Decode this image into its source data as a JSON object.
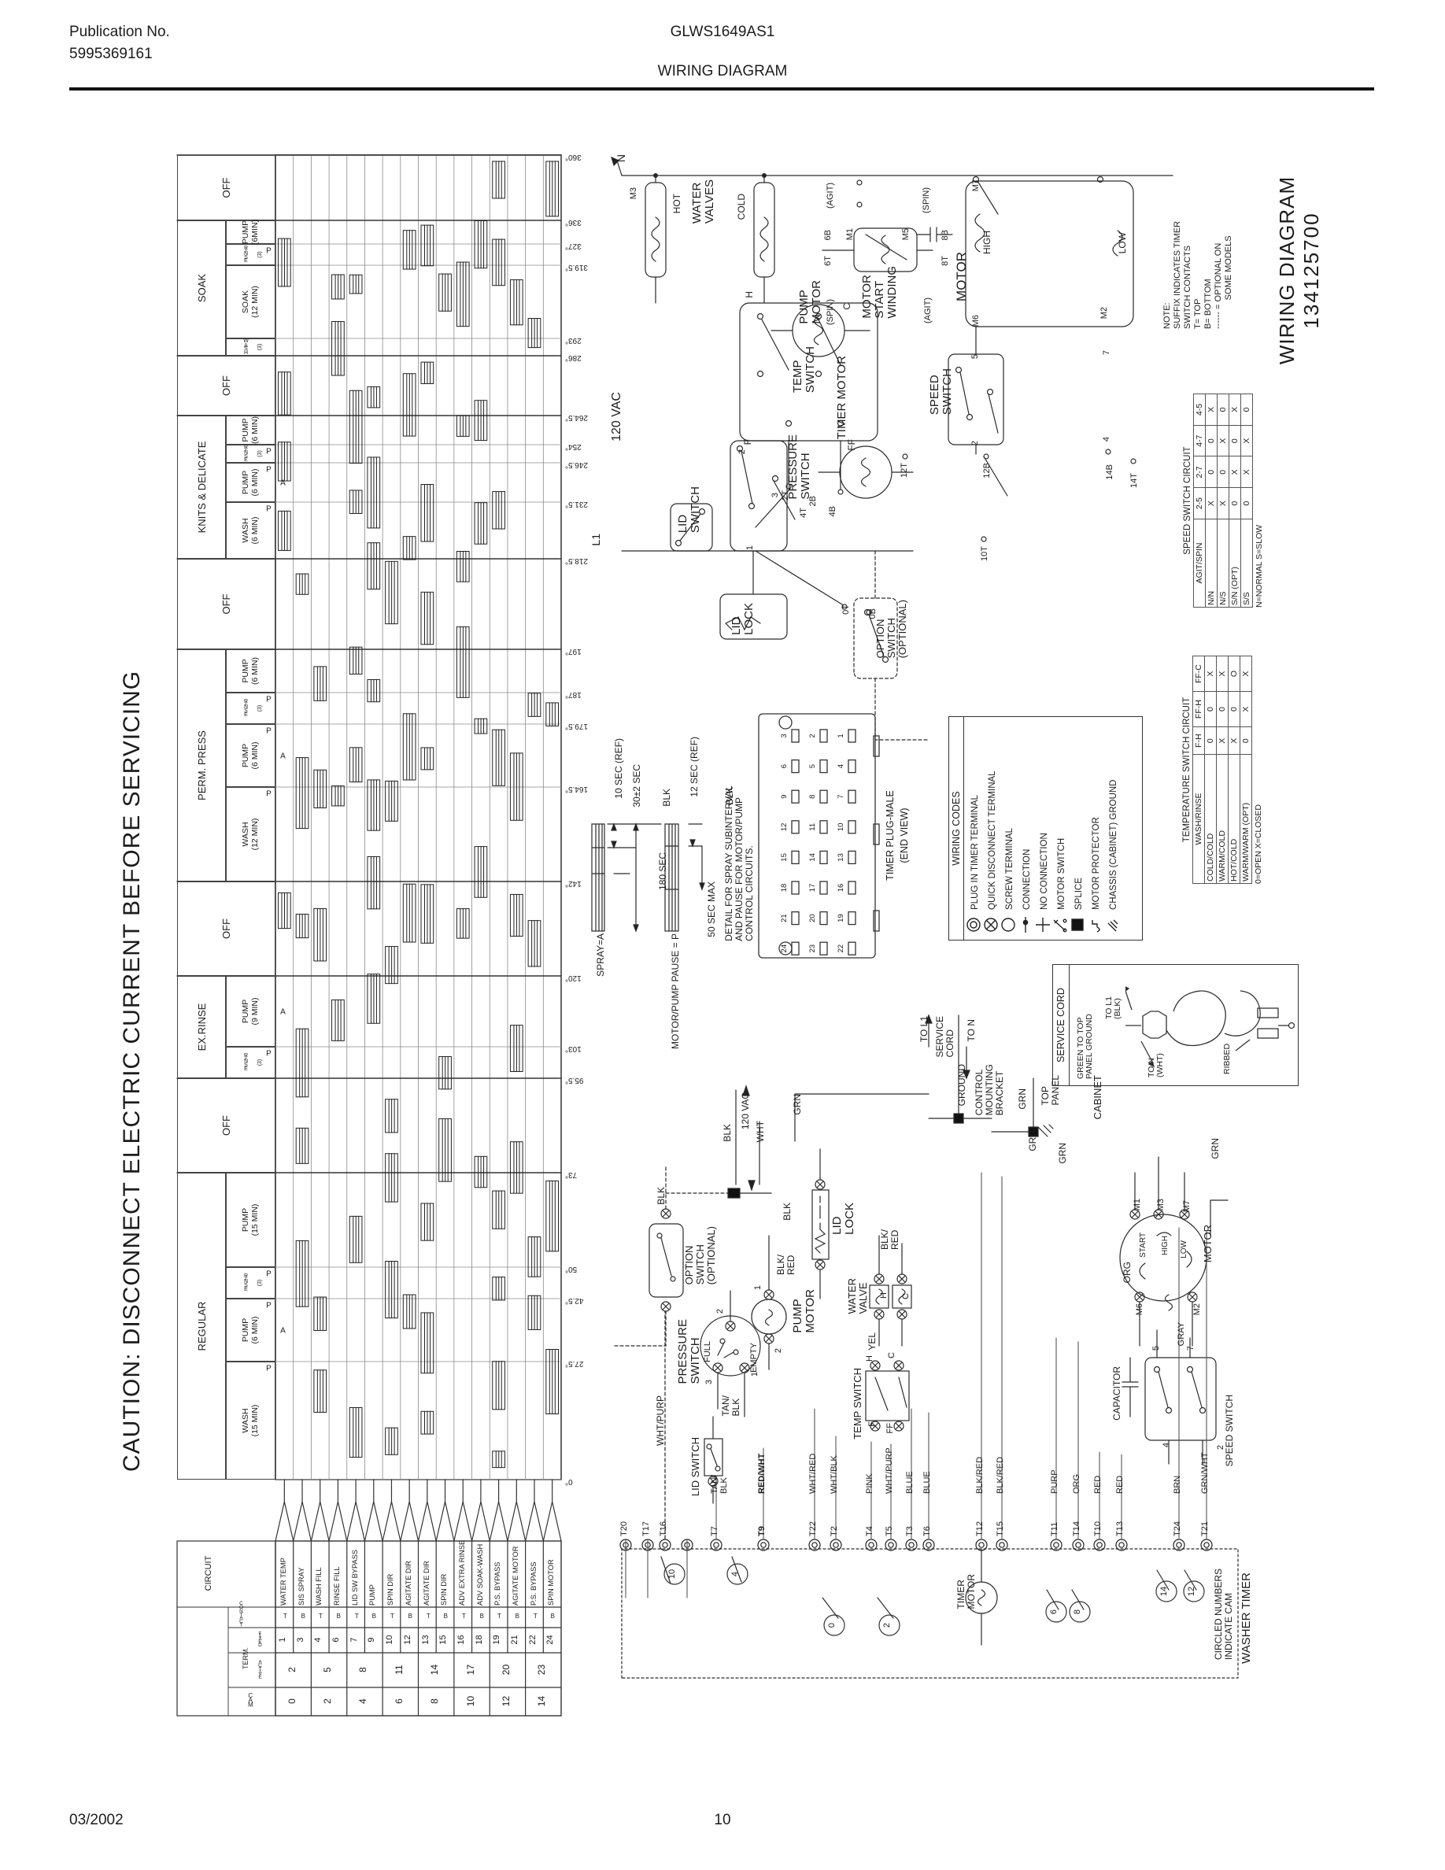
{
  "header": {
    "publication_label": "Publication No.",
    "publication_number": "5995369161",
    "model": "GLWS1649AS1",
    "title": "WIRING DIAGRAM"
  },
  "footer": {
    "date": "03/2002",
    "page": "10"
  },
  "caution": "CAUTION: DISCONNECT ELECTRIC CURRENT BEFORE SERVICING",
  "timer_chart": {
    "type": "timer-cam-chart",
    "degree_stops": [
      "360°",
      "336°",
      "327°",
      "319.5°",
      "293°",
      "286°",
      "264.5°",
      "254°",
      "246.5°",
      "231.5°",
      "218.5°",
      "197°",
      "187°",
      "179.5°",
      "164.5°",
      "142°",
      "120°",
      "103°",
      "95.5°",
      "73°",
      "50°",
      "42.5°",
      "27.5°",
      "0°"
    ],
    "degree_values": [
      360,
      336,
      327,
      319.5,
      293,
      286,
      264.5,
      254,
      246.5,
      231.5,
      218.5,
      197,
      187,
      179.5,
      164.5,
      142,
      120,
      103,
      95.5,
      73,
      50,
      42.5,
      27.5,
      0
    ],
    "cycles": [
      {
        "name": "OFF",
        "from": 360,
        "to": 336,
        "segments": []
      },
      {
        "name": "SOAK",
        "from": 336,
        "to": 286,
        "segments": [
          {
            "l1": "PUMP",
            "l2": "(6MIN)",
            "from": 336,
            "to": 327
          },
          {
            "l1": "RINSE",
            "l2": "(3)",
            "stack": true,
            "p": true,
            "from": 327,
            "to": 319.5
          },
          {
            "l1": "SOAK",
            "l2": "(12 MIN)",
            "from": 319.5,
            "to": 293
          },
          {
            "l1": "WASH",
            "l2": "(3)",
            "stack": true,
            "from": 293,
            "to": 286
          }
        ]
      },
      {
        "name": "OFF",
        "from": 286,
        "to": 264.5,
        "segments": []
      },
      {
        "name": "KNITS & DELICATE",
        "from": 264.5,
        "to": 218.5,
        "segments": [
          {
            "l1": "PUMP",
            "l2": "(6 MIN)",
            "from": 264.5,
            "to": 254
          },
          {
            "l1": "RINSE",
            "l2": "(3)",
            "stack": true,
            "p": true,
            "from": 254,
            "to": 246.5
          },
          {
            "l1": "PUMP",
            "l2": "(6 MIN)",
            "p": true,
            "a": true,
            "from": 246.5,
            "to": 231.5
          },
          {
            "l1": "WASH",
            "l2": "(6 MIN)",
            "p": true,
            "from": 231.5,
            "to": 218.5
          }
        ]
      },
      {
        "name": "OFF",
        "from": 218.5,
        "to": 197,
        "segments": []
      },
      {
        "name": "PERM. PRESS",
        "from": 197,
        "to": 142,
        "segments": [
          {
            "l1": "PUMP",
            "l2": "(6 MIN)",
            "from": 197,
            "to": 187
          },
          {
            "l1": "RINSE",
            "l2": "(3)",
            "stack": true,
            "p": true,
            "from": 187,
            "to": 179.5
          },
          {
            "l1": "PUMP",
            "l2": "(6 MIN)",
            "p": true,
            "a": true,
            "from": 179.5,
            "to": 164.5
          },
          {
            "l1": "WASH",
            "l2": "(12 MIN)",
            "p": true,
            "from": 164.5,
            "to": 142
          }
        ]
      },
      {
        "name": "OFF",
        "from": 142,
        "to": 120,
        "segments": []
      },
      {
        "name": "EX.RINSE",
        "from": 120,
        "to": 95.5,
        "segments": [
          {
            "l1": "PUMP",
            "l2": "(9 MIN)",
            "a": true,
            "from": 120,
            "to": 103
          },
          {
            "l1": "RINSE",
            "l2": "(3)",
            "stack": true,
            "p": true,
            "from": 103,
            "to": 95.5
          }
        ]
      },
      {
        "name": "OFF",
        "from": 95.5,
        "to": 73,
        "segments": []
      },
      {
        "name": "REGULAR",
        "from": 73,
        "to": 0,
        "segments": [
          {
            "l1": "PUMP",
            "l2": "(15 MIN)",
            "from": 73,
            "to": 50
          },
          {
            "l1": "RINSE",
            "l2": "(3)",
            "stack": true,
            "p": true,
            "from": 50,
            "to": 42.5
          },
          {
            "l1": "PUMP",
            "l2": "(6 MIN)",
            "p": true,
            "a": true,
            "from": 42.5,
            "to": 27.5
          },
          {
            "l1": "WASH",
            "l2": "(15 MIN)",
            "p": true,
            "from": 27.5,
            "to": 0
          }
        ]
      }
    ],
    "cam_table": {
      "headers": {
        "cam": "CAM",
        "term": "TERM.",
        "active": "ACTIVE",
        "fixed": "FIXED",
        "contact": "CONTACT",
        "circuit": "CIRCUIT"
      },
      "rows": [
        [
          "1",
          "T",
          "WATER TEMP"
        ],
        [
          "3",
          "B",
          "SIS SPRAY"
        ],
        [
          "4",
          "T",
          "WASH FILL"
        ],
        [
          "6",
          "B",
          "RINSE FILL"
        ],
        [
          "7",
          "T",
          "LID SW BYPASS"
        ],
        [
          "9",
          "B",
          "PUMP"
        ],
        [
          "10",
          "T",
          "SPIN DIR"
        ],
        [
          "12",
          "B",
          "AGITATE DIR"
        ],
        [
          "13",
          "T",
          "AGITATE DIR"
        ],
        [
          "15",
          "B",
          "SPIN DIR"
        ],
        [
          "16",
          "T",
          "ADV EXTRA RINSE"
        ],
        [
          "18",
          "B",
          "ADV SOAK-WASH"
        ],
        [
          "19",
          "T",
          "P.S. BYPASS"
        ],
        [
          "21",
          "B",
          "AGITATE MOTOR"
        ],
        [
          "22",
          "T",
          "P.S. BYPASS"
        ],
        [
          "24",
          "B",
          "SPIN MOTOR"
        ]
      ],
      "active": [
        "2",
        "5",
        "8",
        "11",
        "14",
        "17",
        "20",
        "23"
      ],
      "cam": [
        "0",
        "2",
        "4",
        "6",
        "8",
        "10",
        "12",
        "14"
      ]
    }
  },
  "detail_labels": {
    "spray": "SPRAY=A",
    "pause": "MOTOR/PUMP PAUSE = P",
    "t10": "10 SEC (REF)",
    "t30": "30±2 SEC",
    "t12": "12 SEC (REF)",
    "t180": "180 SEC",
    "t50": "50 SEC MAX",
    "caption": "DETAIL FOR SPRAY SUBINTERVAL\nAND PAUSE FOR MOTOR/PUMP\nCONTROL CIRCUITS."
  },
  "plug": {
    "title": "TIMER PLUG-MALE",
    "subtitle": "(END VIEW)",
    "rows": [
      [
        "3",
        "6",
        "9",
        "12",
        "15",
        "18",
        "21",
        "24"
      ],
      [
        "2",
        "5",
        "8",
        "11",
        "14",
        "17",
        "20",
        "23"
      ],
      [
        "1",
        "4",
        "7",
        "10",
        "13",
        "16",
        "19",
        "22"
      ]
    ]
  },
  "wiring_codes": {
    "title": "WIRING CODES",
    "items": [
      {
        "icon": "plug-in-timer-terminal-icon",
        "label": "PLUG IN TIMER TERMINAL"
      },
      {
        "icon": "quick-disconnect-terminal-icon",
        "label": "QUICK DISCONNECT TERMINAL"
      },
      {
        "icon": "screw-terminal-icon",
        "label": "SCREW TERMINAL"
      },
      {
        "icon": "connection-icon",
        "label": "CONNECTION"
      },
      {
        "icon": "no-connection-icon",
        "label": "NO CONNECTION"
      },
      {
        "icon": "motor-switch-icon",
        "label": "MOTOR SWITCH"
      },
      {
        "icon": "splice-icon",
        "label": "SPLICE"
      },
      {
        "icon": "motor-protector-icon",
        "label": "MOTOR PROTECTOR"
      },
      {
        "icon": "chassis-ground-icon",
        "label": "CHASSIS (CABINET) GROUND"
      }
    ]
  },
  "speed_table": {
    "title": "SPEED SWITCH CIRCUIT",
    "row_header": "AGIT/SPIN",
    "cols": [
      "2-5",
      "2-7",
      "4-7",
      "4-5"
    ],
    "rows": [
      {
        "name": "N/N",
        "vals": [
          "X",
          "0",
          "0",
          "X"
        ]
      },
      {
        "name": "N/S",
        "vals": [
          "X",
          "0",
          "X",
          "0"
        ]
      },
      {
        "name": "S/N (OPT)",
        "vals": [
          "0",
          "X",
          "0",
          "X"
        ]
      },
      {
        "name": "S/S",
        "vals": [
          "0",
          "X",
          "X",
          "0"
        ]
      }
    ],
    "footnote": "N=NORMAL    S=SLOW"
  },
  "temp_table": {
    "title": "TEMPERATURE SWITCH CIRCUIT",
    "row_header": "WASH/RINSE",
    "cols": [
      "F-H",
      "FF-H",
      "FF-C"
    ],
    "rows": [
      {
        "name": "COLD/COLD",
        "vals": [
          "0",
          "0",
          "X"
        ]
      },
      {
        "name": "WARM/COLD",
        "vals": [
          "X",
          "0",
          "X"
        ]
      },
      {
        "name": "HOT/COLD",
        "vals": [
          "X",
          "0",
          "O"
        ]
      },
      {
        "name": "WARM/WARM (OPT)",
        "vals": [
          "0",
          "X",
          "X"
        ]
      }
    ],
    "footnote": "0=OPEN    X=CLOSED"
  },
  "note_lines": [
    "NOTE:",
    "SUFFIX INDICATES TIMER",
    "SWITCH CONTACTS",
    "T= TOP",
    "B= BOTTOM",
    "------ = OPTIONAL ON",
    "            SOME MODELS"
  ],
  "diagram_title": {
    "line1": "WIRING DIAGRAM",
    "line2": "134125700"
  },
  "service_cord": {
    "title": "SERVICE CORD",
    "ground": "GREEN TO TOP\nPANEL GROUND",
    "l1": "TO L1\n(BLK)",
    "n": "TO N\n(WHT)",
    "ribbed": "RIBBED"
  },
  "timer_strip": {
    "label": "WASHER TIMER",
    "cam_note": "CIRCLED NUMBERS\nINDICATE CAM",
    "timer_motor": "TIMER\nMOTOR",
    "terminals": [
      {
        "t": "T20",
        "color": ""
      },
      {
        "t": "T17",
        "color": ""
      },
      {
        "t": "T16",
        "color": ""
      },
      {
        "t": "",
        "color": ""
      },
      {
        "t": "T7",
        "color": "TAN/\nBLK"
      },
      {
        "t": "T9",
        "color": "RED/WHT",
        "bold": true
      },
      {
        "t": "T22",
        "color": "WHT/RED"
      },
      {
        "t": "T2",
        "color": "WHT/BLK"
      },
      {
        "t": "T4",
        "color": "PINK"
      },
      {
        "t": "T5",
        "color": "WHT/PURP"
      },
      {
        "t": "T3",
        "color": "BLUE"
      },
      {
        "t": "T6",
        "color": "BLUE"
      },
      {
        "t": "T12",
        "color": "BLK/RED"
      },
      {
        "t": "T15",
        "color": "BLK/RED"
      },
      {
        "t": "T11",
        "color": "PURP"
      },
      {
        "t": "T14",
        "color": "ORG"
      },
      {
        "t": "T10",
        "color": "RED"
      },
      {
        "t": "T13",
        "color": "RED"
      },
      {
        "t": "T24",
        "color": "BRN"
      },
      {
        "t": "T21",
        "color": "GRN/WHT"
      }
    ],
    "cams": [
      "10",
      "4",
      "0",
      "2",
      "6",
      "8",
      "14",
      "12"
    ]
  },
  "labels": {
    "n": "N",
    "m3": "M3",
    "hot": "HOT",
    "watervalves": "WATER\nVALVES",
    "cold": "COLD",
    "h1": "H",
    "c1": "C",
    "tempswitch1": "TEMP\nSWITCH",
    "f1": "F",
    "ff1": "FF",
    "t2t": "2T",
    "t2b": "2B",
    "t0t": "0T",
    "t0b": "0B",
    "vac120top": "120 VAC",
    "l1": "L1",
    "pressure1": "PRESSURE\nSWITCH",
    "p2a": "2",
    "p3a": "3",
    "p1a": "1",
    "lidswitch1": "LID\nSWITCH",
    "t4t": "4T",
    "t4b": "4B",
    "lidlock1": "LID\nLOCK",
    "option1": "OPTION\nSWITCH\n(OPTIONAL)",
    "pumpmotor1": "PUMP\nMOTOR",
    "timermotor1": "TIMER MOTOR",
    "agit6": "(AGIT)",
    "b6": "6B",
    "t6": "6T",
    "m1a": "M1",
    "m5a": "M5",
    "spin8": "(SPIN)",
    "b8": "8B",
    "t8": "8T",
    "msw": "MOTOR\nSTART\nWINDING",
    "spin6": "(SPIN)",
    "agit8": "(AGIT)",
    "motor1": "MOTOR",
    "high1": "HIGH",
    "m7a": "M7",
    "m6a": "M6",
    "low1": "LOW",
    "m2a": "M2",
    "speedswitch1": "SPEED\nSWITCH",
    "n5": "5",
    "n2": "2",
    "n7": "7",
    "n4": "4",
    "t12t": "12T",
    "t12b": "12B",
    "t14b": "14B",
    "t14t": "14T",
    "t10t": "10T",
    "spraya": "SPRAY=A",
    "mppause": "MOTOR/PUMP PAUSE = P",
    "sec10": "10 SEC (REF)",
    "sec30": "30±2 SEC",
    "sec12": "12 SEC (REF)",
    "sec180": "180 SEC",
    "sec50": "50 SEC MAX",
    "detailcap": "DETAIL FOR SPRAY SUBINTERVAL\nAND PAUSE FOR MOTOR/PUMP\nCONTROL CIRCUITS.",
    "blkd1": "BLK",
    "blkd2": "BLK",
    "blkw1": "BLK",
    "vac120bot": "120 VAC",
    "whtw1": "WHT",
    "grnw1": "GRN",
    "option2": "OPTION\nSWITCH\n(OPTIONAL)",
    "blko2": "BLK",
    "blkll": "BLK",
    "lidlock2": "LID\nLOCK",
    "blkredpm": "BLK/\nRED",
    "pm1": "1",
    "pm2": "2",
    "pumpmotor2": "PUMP\nMOTOR",
    "empty2": "EMPTY",
    "full2": "FULL",
    "pressure2": "PRESSURE\nSWITCH",
    "ps22": "2",
    "ps23": "3",
    "ps21": "1",
    "tanblk2": "TAN/\nBLK",
    "whtpurp2": "WHT/PURP",
    "lidswitch2": "LID SWITCH",
    "watervalve2": "WATER\nVALVE",
    "wvh": "H",
    "wvc": "C",
    "blkredwv": "BLK/\nRED",
    "yel": "YEL",
    "tsh": "H",
    "tsc": "C",
    "tempswitch2": "TEMP SWITCH",
    "tsf": "F",
    "tsff": "FF",
    "ground": "GROUND",
    "cmb": "CONTROL\nMOUNTING\nBRACKET",
    "grn1": "GRN",
    "toppanel": "TOP\nPANEL",
    "grn2": "GRN",
    "grn3": "GRN",
    "cabinet": "CABINET",
    "tol1": "TO L1",
    "servicecord2": "SERVICE\nCORD",
    "ton": "TO N",
    "grn4": "GRN",
    "mm1": "M1",
    "mm3": "M3",
    "mm7": "M7",
    "start2": "START",
    "high2": "HIGH",
    "low2": "LOW",
    "motor2": "MOTOR",
    "mm6": "M6",
    "mm2": "M2",
    "gray2": "GRAY",
    "org2": "ORG",
    "capacitor2": "CAPACITOR",
    "speedswitch2": "SPEED SWITCH",
    "n5b": "5",
    "n7b": "7",
    "n4b": "4",
    "n2b": "2"
  }
}
